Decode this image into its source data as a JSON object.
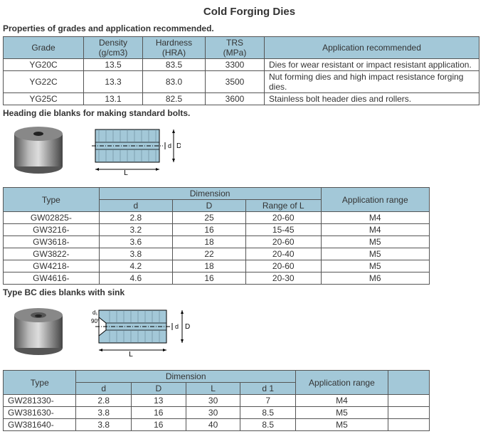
{
  "title": "Cold Forging Dies",
  "section1": {
    "heading": "Properties of grades and application recommended.",
    "headers": {
      "grade": "Grade",
      "density": "Density\n(g/cm3)",
      "hardness": "Hardness\n(HRA)",
      "trs": "TRS\n(MPa)",
      "app": "Application recommended"
    },
    "rows": [
      {
        "grade": "YG20C",
        "density": "13.5",
        "hardness": "83.5",
        "trs": "3300",
        "app": "Dies for wear resistant or impact resistant application."
      },
      {
        "grade": "YG22C",
        "density": "13.3",
        "hardness": "83.0",
        "trs": "3500",
        "app": "Nut forming dies and high impact resistance forging dies."
      },
      {
        "grade": "YG25C",
        "density": "13.1",
        "hardness": "82.5",
        "trs": "3600",
        "app": "Stainless bolt header dies and rollers."
      }
    ]
  },
  "section2": {
    "heading": "Heading die blanks for making standard bolts.",
    "headers": {
      "type": "Type",
      "dim": "Dimension",
      "d": "d",
      "D": "D",
      "range": "Range of L",
      "app": "Application range"
    },
    "rows": [
      {
        "type": "GW02825-",
        "d": "2.8",
        "D": "25",
        "range": "20-60",
        "app": "M4"
      },
      {
        "type": "GW3216-",
        "d": "3.2",
        "D": "16",
        "range": "15-45",
        "app": "M4"
      },
      {
        "type": "GW3618-",
        "d": "3.6",
        "D": "18",
        "range": "20-60",
        "app": "M5"
      },
      {
        "type": "GW3822-",
        "d": "3.8",
        "D": "22",
        "range": "20-40",
        "app": "M5"
      },
      {
        "type": "GW4218-",
        "d": "4.2",
        "D": "18",
        "range": "20-60",
        "app": "M5"
      },
      {
        "type": "GW4616-",
        "d": "4.6",
        "D": "16",
        "range": "20-30",
        "app": "M6"
      }
    ]
  },
  "section3": {
    "heading": "Type BC dies blanks with sink",
    "headers": {
      "type": "Type",
      "dim": "Dimension",
      "d": "d",
      "D": "D",
      "L": "L",
      "d1": "d 1",
      "app": "Application range"
    },
    "rows": [
      {
        "type": "GW281330-",
        "d": "2.8",
        "D": "13",
        "L": "30",
        "d1": "7",
        "app": "M4"
      },
      {
        "type": "GW381630-",
        "d": "3.8",
        "D": "16",
        "L": "30",
        "d1": "8.5",
        "app": "M5"
      },
      {
        "type": "GW381640-",
        "d": "3.8",
        "D": "16",
        "L": "40",
        "d1": "8.5",
        "app": "M5"
      }
    ]
  },
  "colors": {
    "header_bg": "#a3c8d8",
    "border": "#555555",
    "text": "#333333"
  }
}
